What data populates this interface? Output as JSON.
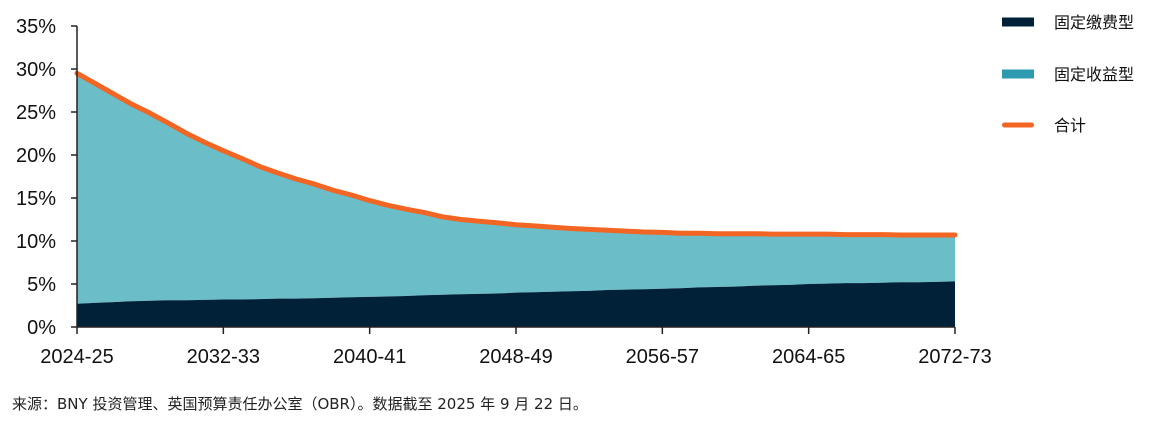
{
  "chart_data": {
    "type": "area",
    "x": [
      "2024-25",
      "2025-26",
      "2026-27",
      "2027-28",
      "2028-29",
      "2029-30",
      "2030-31",
      "2031-32",
      "2032-33",
      "2033-34",
      "2034-35",
      "2035-36",
      "2036-37",
      "2037-38",
      "2038-39",
      "2039-40",
      "2040-41",
      "2041-42",
      "2042-43",
      "2043-44",
      "2044-45",
      "2045-46",
      "2046-47",
      "2047-48",
      "2048-49",
      "2049-50",
      "2050-51",
      "2051-52",
      "2052-53",
      "2053-54",
      "2054-55",
      "2055-56",
      "2056-57",
      "2057-58",
      "2058-59",
      "2059-60",
      "2060-61",
      "2061-62",
      "2062-63",
      "2063-64",
      "2064-65",
      "2065-66",
      "2066-67",
      "2067-68",
      "2068-69",
      "2069-70",
      "2070-71",
      "2071-72",
      "2072-73"
    ],
    "x_ticks": [
      "2024-25",
      "2032-33",
      "2040-41",
      "2048-49",
      "2056-57",
      "2064-65",
      "2072-73"
    ],
    "y_ticks": [
      "0%",
      "5%",
      "10%",
      "15%",
      "20%",
      "25%",
      "30%",
      "35%"
    ],
    "ylim": [
      0,
      35
    ],
    "series": [
      {
        "name": "固定缴费型",
        "color": "#002138",
        "kind": "area",
        "values": [
          2.7,
          2.8,
          2.9,
          3.0,
          3.05,
          3.1,
          3.1,
          3.15,
          3.2,
          3.2,
          3.25,
          3.3,
          3.3,
          3.35,
          3.4,
          3.45,
          3.5,
          3.55,
          3.6,
          3.7,
          3.75,
          3.8,
          3.85,
          3.9,
          4.0,
          4.05,
          4.1,
          4.15,
          4.2,
          4.3,
          4.35,
          4.4,
          4.45,
          4.5,
          4.6,
          4.65,
          4.7,
          4.8,
          4.85,
          4.9,
          5.0,
          5.05,
          5.1,
          5.1,
          5.15,
          5.2,
          5.2,
          5.25,
          5.3
        ]
      },
      {
        "name": "固定收益型",
        "color": "#2E9AB0",
        "fill": "#6BBDC8",
        "kind": "area",
        "values": [
          26.8,
          25.5,
          24.2,
          22.9,
          21.8,
          20.6,
          19.4,
          18.3,
          17.3,
          16.4,
          15.4,
          14.6,
          13.9,
          13.25,
          12.5,
          11.9,
          11.2,
          10.6,
          10.1,
          9.6,
          9.05,
          8.7,
          8.45,
          8.2,
          7.9,
          7.7,
          7.5,
          7.3,
          7.15,
          6.95,
          6.8,
          6.65,
          6.55,
          6.4,
          6.3,
          6.2,
          6.15,
          6.05,
          5.95,
          5.9,
          5.8,
          5.75,
          5.65,
          5.65,
          5.6,
          5.5,
          5.5,
          5.45,
          5.4
        ]
      },
      {
        "name": "合计",
        "color": "#F26522",
        "kind": "line",
        "values": [
          29.5,
          28.3,
          27.1,
          25.9,
          24.85,
          23.7,
          22.5,
          21.45,
          20.5,
          19.6,
          18.65,
          17.9,
          17.2,
          16.6,
          15.9,
          15.35,
          14.7,
          14.15,
          13.7,
          13.3,
          12.8,
          12.5,
          12.3,
          12.1,
          11.9,
          11.75,
          11.6,
          11.45,
          11.35,
          11.25,
          11.15,
          11.05,
          11.0,
          10.9,
          10.9,
          10.85,
          10.85,
          10.85,
          10.8,
          10.8,
          10.8,
          10.8,
          10.75,
          10.75,
          10.75,
          10.7,
          10.7,
          10.7,
          10.7
        ]
      }
    ],
    "legend": [
      "固定缴费型",
      "固定收益型",
      "合计"
    ],
    "legend_position": "top-right",
    "grid": false
  },
  "source_note": "来源：BNY 投资管理、英国预算责任办公室（OBR）。数据截至 2025 年 9 月 22 日。"
}
